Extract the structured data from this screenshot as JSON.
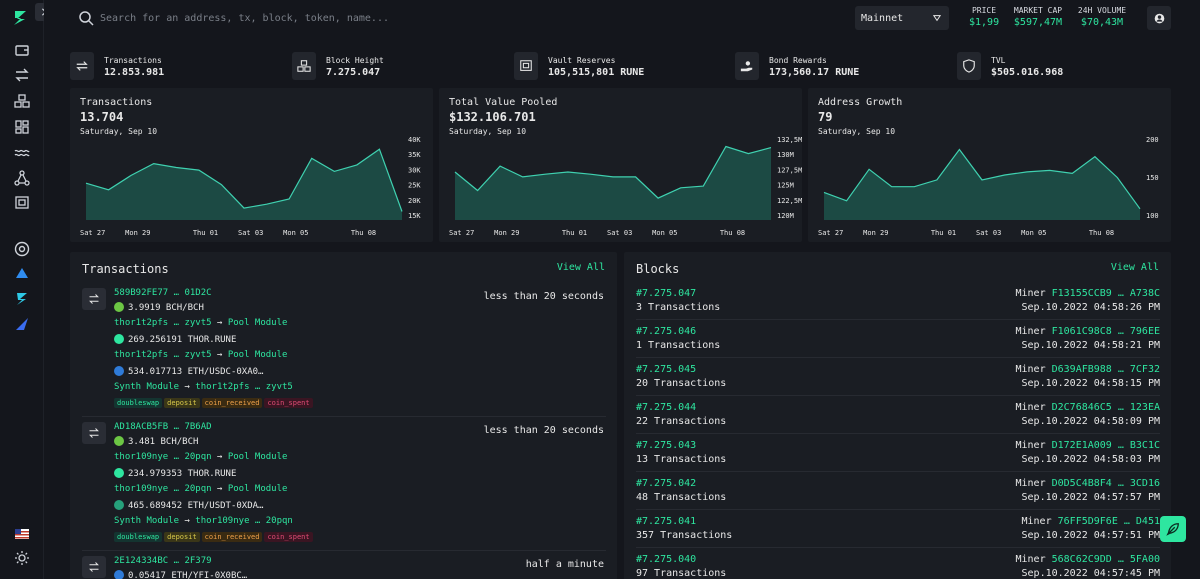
{
  "header": {
    "search_placeholder": "Search for an address, tx, block, token, name...",
    "network": "Mainnet",
    "price_label": "PRICE",
    "price_value": "$1,99",
    "mcap_label": "MARKET CAP",
    "mcap_value": "$597,47M",
    "volume_label": "24H VOLUME",
    "volume_value": "$70,43M"
  },
  "stats": [
    {
      "label": "Transactions",
      "value": "12.853.981",
      "icon": "swap-icon"
    },
    {
      "label": "Block Height",
      "value": "7.275.047",
      "icon": "cubes-icon"
    },
    {
      "label": "Vault Reserves",
      "value": "105,515,801 RUNE",
      "icon": "vault-icon"
    },
    {
      "label": "Bond Rewards",
      "value": "173,560.17 RUNE",
      "icon": "hand-coin-icon"
    },
    {
      "label": "TVL",
      "value": "$505.016.968",
      "icon": "shield-icon"
    }
  ],
  "charts": [
    {
      "title": "Transactions",
      "value": "13.704",
      "date": "Saturday, Sep 10"
    },
    {
      "title": "Total Value Pooled",
      "value": "$132.106.701",
      "date": "Saturday, Sep 10"
    },
    {
      "title": "Address Growth",
      "value": "79",
      "date": "Saturday, Sep 10"
    }
  ],
  "chart_data": [
    {
      "type": "area",
      "x": [
        "Sat 27",
        "Sun 28",
        "Mon 29",
        "Tue 30",
        "Wed 31",
        "Thu 01",
        "Fri 02",
        "Sat 03",
        "Sun 04",
        "Mon 05",
        "Tue 06",
        "Wed 07",
        "Thu 08",
        "Fri 09",
        "Sat 10"
      ],
      "xticks": [
        "Sat 27",
        "Mon 29",
        "Thu 01",
        "Sat 03",
        "Mon 05",
        "Thu 08"
      ],
      "values": [
        24500,
        22000,
        27500,
        32000,
        30500,
        29500,
        24000,
        15000,
        16500,
        18500,
        34000,
        29000,
        31500,
        37500,
        13700
      ],
      "yticks": [
        "40K",
        "35K",
        "30K",
        "25K",
        "20K",
        "15K"
      ],
      "ylim": [
        12000,
        41000
      ]
    },
    {
      "type": "area",
      "x": [
        "Sat 27",
        "Sun 28",
        "Mon 29",
        "Tue 30",
        "Wed 31",
        "Thu 01",
        "Fri 02",
        "Sat 03",
        "Sun 04",
        "Mon 05",
        "Tue 06",
        "Wed 07",
        "Thu 08",
        "Fri 09",
        "Sat 10"
      ],
      "xticks": [
        "Sat 27",
        "Mon 29",
        "Thu 01",
        "Sat 03",
        "Mon 05",
        "Thu 08"
      ],
      "values": [
        127600,
        124200,
        128700,
        126700,
        127200,
        127600,
        127200,
        126700,
        126700,
        122800,
        124700,
        125000,
        132300,
        131000,
        132100
      ],
      "yticks": [
        "132,5M",
        "130M",
        "127,5M",
        "125M",
        "122,5M",
        "120M"
      ],
      "ylim": [
        119500,
        133500
      ]
    },
    {
      "type": "area",
      "x": [
        "Sat 27",
        "Sun 28",
        "Mon 29",
        "Tue 30",
        "Wed 31",
        "Thu 01",
        "Fri 02",
        "Sat 03",
        "Sun 04",
        "Mon 05",
        "Tue 06",
        "Wed 07",
        "Thu 08",
        "Fri 09",
        "Sat 10"
      ],
      "xticks": [
        "Sat 27",
        "Mon 29",
        "Thu 01",
        "Sat 03",
        "Mon 05",
        "Thu 08"
      ],
      "values": [
        122,
        100,
        183,
        137,
        137,
        155,
        235,
        155,
        168,
        176,
        180,
        172,
        216,
        161,
        79
      ],
      "yticks": [
        "200",
        "150",
        "100"
      ],
      "ylim": [
        60,
        260
      ]
    }
  ],
  "transactions": {
    "title": "Transactions",
    "view_all": "View All",
    "items": [
      {
        "hash": "589B92FE77 … 01D2C",
        "time": "less than 20 seconds",
        "lines": [
          {
            "kind": "coin",
            "coin": "#6cc644",
            "amount": "3.9919 BCH/BCH"
          },
          {
            "kind": "route",
            "from": "thor1t2pfs … zyvt5",
            "to": "Pool Module"
          },
          {
            "kind": "coin",
            "coin": "#2ee6a0",
            "amount": "269.256191 THOR.RUNE"
          },
          {
            "kind": "route",
            "from": "thor1t2pfs … zyvt5",
            "to": "Pool Module"
          },
          {
            "kind": "coin",
            "coin": "#2f7bd8",
            "amount": "534.017713 ETH/USDC-0XA0…"
          },
          {
            "kind": "route",
            "from": "Synth Module",
            "to": "thor1t2pfs … zyvt5"
          }
        ],
        "tags": [
          "doubleswap",
          "deposit",
          "coin_received",
          "coin_spent"
        ]
      },
      {
        "hash": "AD18ACB5FB … 7B6AD",
        "time": "less than 20 seconds",
        "lines": [
          {
            "kind": "coin",
            "coin": "#6cc644",
            "amount": "3.481 BCH/BCH"
          },
          {
            "kind": "route",
            "from": "thor109nye … 20pqn",
            "to": "Pool Module"
          },
          {
            "kind": "coin",
            "coin": "#2ee6a0",
            "amount": "234.979353 THOR.RUNE"
          },
          {
            "kind": "route",
            "from": "thor109nye … 20pqn",
            "to": "Pool Module"
          },
          {
            "kind": "coin",
            "coin": "#26a17b",
            "amount": "465.689452 ETH/USDT-0XDA…"
          },
          {
            "kind": "route",
            "from": "Synth Module",
            "to": "thor109nye … 20pqn"
          }
        ],
        "tags": [
          "doubleswap",
          "deposit",
          "coin_received",
          "coin_spent"
        ]
      },
      {
        "hash": "2E124334BC … 2F379",
        "time": "half a minute",
        "lines": [
          {
            "kind": "coin",
            "coin": "#2f7bd8",
            "amount": "0.05417 ETH/YFI-0X0BC…"
          }
        ],
        "tags": []
      }
    ]
  },
  "blocks": {
    "title": "Blocks",
    "view_all": "View All",
    "miner_label": "Miner",
    "items": [
      {
        "number": "#7.275.047",
        "tx": "3 Transactions",
        "miner": "F13155CCB9 … A738C",
        "date": "Sep.10.2022 04:58:26 PM"
      },
      {
        "number": "#7.275.046",
        "tx": "1 Transactions",
        "miner": "F1061C98C8 … 796EE",
        "date": "Sep.10.2022 04:58:21 PM"
      },
      {
        "number": "#7.275.045",
        "tx": "20 Transactions",
        "miner": "D639AFB988 … 7CF32",
        "date": "Sep.10.2022 04:58:15 PM"
      },
      {
        "number": "#7.275.044",
        "tx": "22 Transactions",
        "miner": "D2C76846C5 … 123EA",
        "date": "Sep.10.2022 04:58:09 PM"
      },
      {
        "number": "#7.275.043",
        "tx": "13 Transactions",
        "miner": "D172E1A009 … B3C1C",
        "date": "Sep.10.2022 04:58:03 PM"
      },
      {
        "number": "#7.275.042",
        "tx": "48 Transactions",
        "miner": "D0D5C4B8F4 … 3CD16",
        "date": "Sep.10.2022 04:57:57 PM"
      },
      {
        "number": "#7.275.041",
        "tx": "357 Transactions",
        "miner": "76FF5D9F6E … D451",
        "date": "Sep.10.2022 04:57:51 PM"
      },
      {
        "number": "#7.275.040",
        "tx": "97 Transactions",
        "miner": "568C62C9DD … 5FA00",
        "date": "Sep.10.2022 04:57:45 PM"
      }
    ]
  },
  "colors": {
    "accent": "#2ee6a0",
    "background": "#14161c",
    "card": "#1a1d23"
  }
}
